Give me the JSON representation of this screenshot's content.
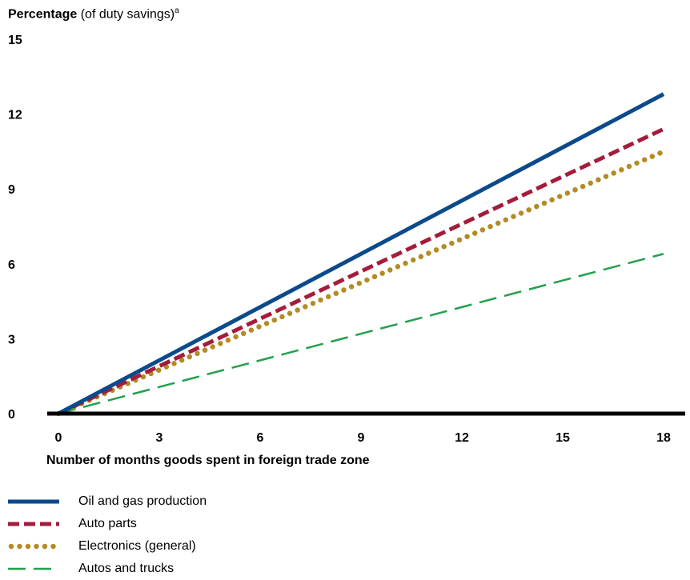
{
  "chart_data": {
    "type": "line",
    "title": "Percentage",
    "title_suffix": "(of duty savings)",
    "title_sup": "a",
    "xlabel": "Number of months goods spent in foreign trade zone",
    "ylabel": "",
    "x": [
      0,
      18
    ],
    "xticks": [
      0,
      3,
      6,
      9,
      12,
      15,
      18
    ],
    "yticks": [
      0,
      3,
      6,
      9,
      12,
      15
    ],
    "xlim": [
      0,
      18
    ],
    "ylim": [
      0,
      15
    ],
    "grid": false,
    "legend_position": "bottom-left",
    "series": [
      {
        "name": "Oil and gas production",
        "values": [
          0,
          12.8
        ],
        "color": "#0b4a8b",
        "style": "solid"
      },
      {
        "name": "Auto parts",
        "values": [
          0,
          11.4
        ],
        "color": "#a51c3a",
        "style": "dashed"
      },
      {
        "name": "Electronics (general)",
        "values": [
          0,
          10.5
        ],
        "color": "#b38b24",
        "style": "dotted"
      },
      {
        "name": "Autos and trucks",
        "values": [
          0,
          6.4
        ],
        "color": "#22a04b",
        "style": "long-dash"
      }
    ]
  }
}
